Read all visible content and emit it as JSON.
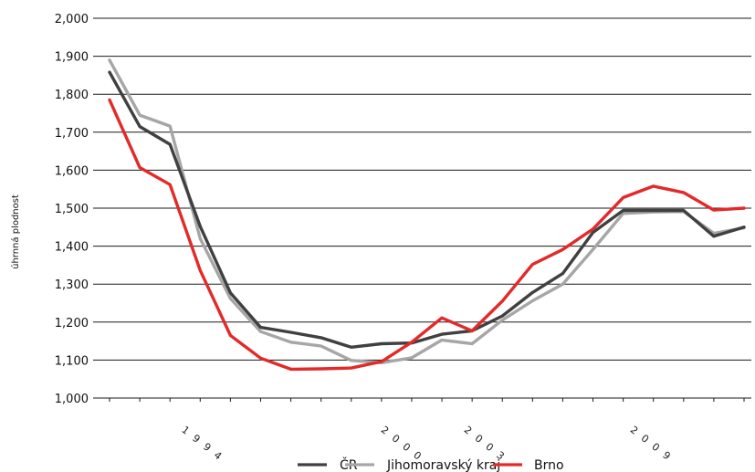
{
  "chart_data": {
    "type": "line",
    "ylabel": "úhrnná plodnost",
    "ylim": [
      1.0,
      2.0
    ],
    "yticks": [
      "1,000",
      "1,100",
      "1,200",
      "1,300",
      "1,400",
      "1,500",
      "1,600",
      "1,700",
      "1,800",
      "1,900",
      "2,000"
    ],
    "grid": "horizontal",
    "x_tick_labels": [
      "1994",
      "2000",
      "2003",
      "2009"
    ],
    "legend_position": "bottom",
    "series": [
      {
        "name": "ČR",
        "color": "#404040",
        "values": [
          1.858,
          1.715,
          1.668,
          1.452,
          1.277,
          1.186,
          1.173,
          1.159,
          1.134,
          1.143,
          1.145,
          1.168,
          1.177,
          1.216,
          1.278,
          1.328,
          1.436,
          1.494,
          1.494,
          1.494,
          1.426,
          1.45
        ]
      },
      {
        "name": "Jihomoravský kraj",
        "color": "#a6a6a6",
        "values": [
          1.89,
          1.745,
          1.716,
          1.42,
          1.262,
          1.175,
          1.147,
          1.137,
          1.099,
          1.093,
          1.106,
          1.153,
          1.143,
          1.205,
          1.256,
          1.3,
          1.391,
          1.486,
          1.49,
          1.491,
          1.434,
          1.448
        ]
      },
      {
        "name": "Brno",
        "color": "#e32a2a",
        "values": [
          1.785,
          1.607,
          1.562,
          1.336,
          1.165,
          1.105,
          1.076,
          1.077,
          1.079,
          1.096,
          1.147,
          1.211,
          1.177,
          1.255,
          1.352,
          1.391,
          1.445,
          1.528,
          1.558,
          1.541,
          1.495,
          1.5
        ]
      }
    ]
  }
}
